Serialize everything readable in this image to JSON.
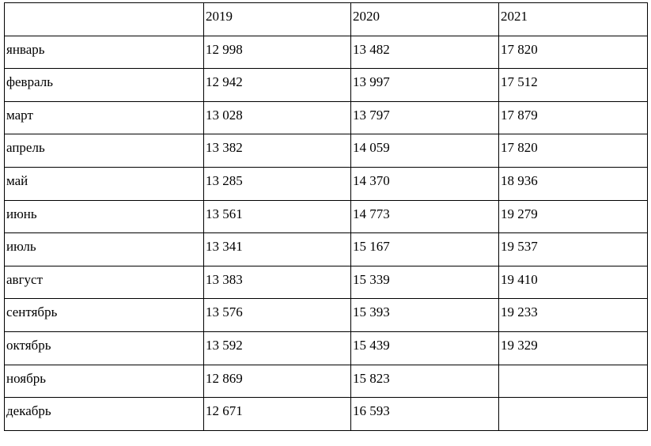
{
  "table": {
    "header": [
      "2019",
      "2020",
      "2021"
    ],
    "rows": [
      [
        "январь",
        "12 998",
        "13 482",
        "17 820"
      ],
      [
        "февраль",
        "12 942",
        "13 997",
        "17 512"
      ],
      [
        "март",
        "13 028",
        "13 797",
        "17 879"
      ],
      [
        "апрель",
        "13 382",
        "14 059",
        "17 820"
      ],
      [
        "май",
        "13 285",
        "14 370",
        "18 936"
      ],
      [
        "июнь",
        "13 561",
        "14 773",
        "19 279"
      ],
      [
        "июль",
        "13 341",
        "15 167",
        "19 537"
      ],
      [
        "август",
        "13 383",
        "15 339",
        "19 410"
      ],
      [
        "сентябрь",
        "13 576",
        "15 393",
        "19 233"
      ],
      [
        "октябрь",
        "13 592",
        "15 439",
        "19 329"
      ],
      [
        "ноябрь",
        "12 869",
        "15 823"
      ],
      [
        "декабрь",
        "12 671",
        "16 593"
      ]
    ]
  }
}
